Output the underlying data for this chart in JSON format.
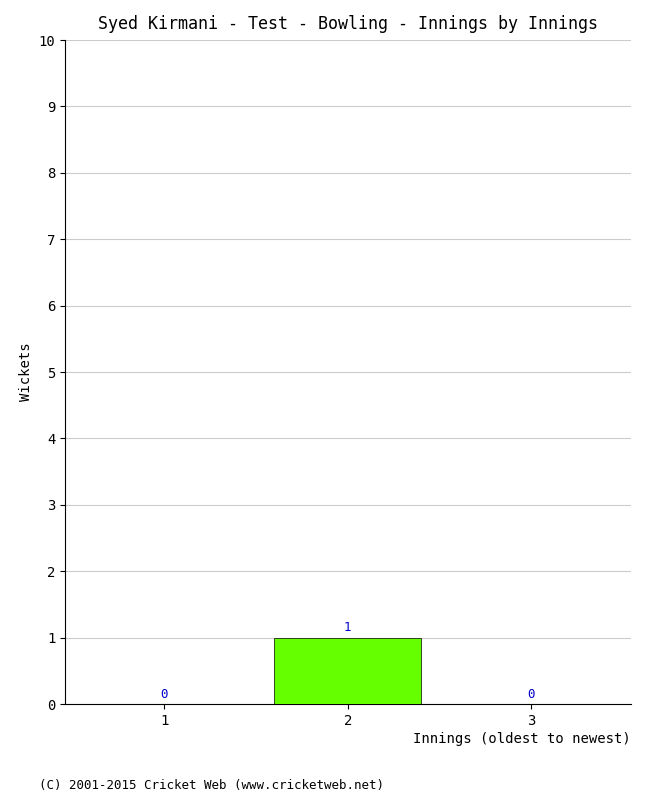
{
  "title": "Syed Kirmani - Test - Bowling - Innings by Innings",
  "xlabel": "Innings (oldest to newest)",
  "ylabel": "Wickets",
  "categories": [
    1,
    2,
    3
  ],
  "values": [
    0,
    1,
    0
  ],
  "bar_color": "#66ff00",
  "ylim": [
    0,
    10
  ],
  "yticks": [
    0,
    1,
    2,
    3,
    4,
    5,
    6,
    7,
    8,
    9,
    10
  ],
  "xticks": [
    1,
    2,
    3
  ],
  "bar_width": 0.8,
  "annotation_color": "#0000cc",
  "background_color": "#ffffff",
  "grid_color": "#cccccc",
  "footer": "(C) 2001-2015 Cricket Web (www.cricketweb.net)",
  "title_fontsize": 12,
  "axis_label_fontsize": 10,
  "tick_fontsize": 10,
  "annotation_fontsize": 9,
  "footer_fontsize": 9
}
